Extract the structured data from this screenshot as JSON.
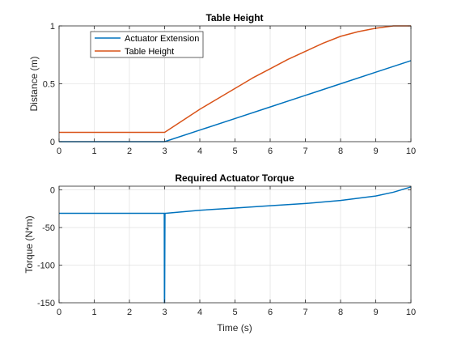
{
  "colors": {
    "actuator": "#0072BD",
    "table": "#D95319",
    "axis": "#262626",
    "grid": "#dcdcdc"
  },
  "chart_data": [
    {
      "type": "line",
      "title": "Table Height",
      "xlabel": "",
      "ylabel": "Distance (m)",
      "xlim": [
        0,
        10
      ],
      "ylim": [
        0,
        1
      ],
      "xticks": [
        "0",
        "1",
        "2",
        "3",
        "4",
        "5",
        "6",
        "7",
        "8",
        "9",
        "10"
      ],
      "yticks": [
        "0",
        "0.5",
        "1"
      ],
      "grid": true,
      "legend_position": "top-left",
      "series": [
        {
          "name": "Actuator Extension",
          "x": [
            0,
            1,
            2,
            3,
            4,
            5,
            6,
            7,
            8,
            9,
            10
          ],
          "y": [
            0,
            0,
            0,
            0,
            0.1,
            0.2,
            0.3,
            0.4,
            0.5,
            0.6,
            0.7
          ]
        },
        {
          "name": "Table Height",
          "x": [
            0,
            1,
            2,
            3,
            3.5,
            4,
            4.5,
            5,
            5.5,
            6,
            6.5,
            7,
            7.5,
            8,
            8.5,
            9,
            9.5,
            10
          ],
          "y": [
            0.08,
            0.08,
            0.08,
            0.08,
            0.18,
            0.28,
            0.37,
            0.46,
            0.55,
            0.63,
            0.71,
            0.78,
            0.85,
            0.91,
            0.95,
            0.98,
            1.0,
            1.0
          ]
        }
      ]
    },
    {
      "type": "line",
      "title": "Required Actuator Torque",
      "xlabel": "Time (s)",
      "ylabel": "Torque (N*m)",
      "xlim": [
        0,
        10
      ],
      "ylim": [
        -150,
        5
      ],
      "xticks": [
        "0",
        "1",
        "2",
        "3",
        "4",
        "5",
        "6",
        "7",
        "8",
        "9",
        "10"
      ],
      "yticks": [
        "0",
        "-50",
        "-100",
        "-150"
      ],
      "grid": true,
      "series": [
        {
          "x": [
            0,
            2.99,
            2.995,
            3.0,
            3.01,
            3.03,
            4,
            5,
            6,
            7,
            8,
            9,
            9.5,
            10
          ],
          "y": [
            -31,
            -31,
            -150,
            -150,
            -31,
            -31,
            -27,
            -24,
            -21,
            -18,
            -14,
            -8,
            -3,
            4
          ]
        }
      ]
    }
  ]
}
